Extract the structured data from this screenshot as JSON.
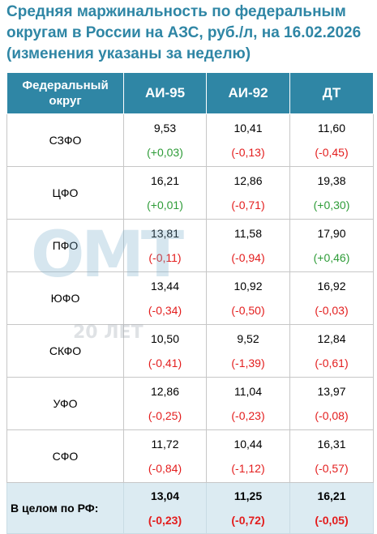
{
  "title_lines": [
    "Средняя маржинальность по федеральным",
    "округам в России на АЗС, руб./л, на 16.02.2026",
    "(изменения указаны за неделю)"
  ],
  "headers": {
    "region_line1": "Федеральный",
    "region_line2": "округ",
    "col1": "АИ-95",
    "col2": "АИ-92",
    "col3": "ДТ"
  },
  "rows": [
    {
      "region": "СЗФО",
      "ai95": "9,53",
      "ai95_chg": "(+0,03)",
      "ai92": "10,41",
      "ai92_chg": "(-0,13)",
      "dt": "11,60",
      "dt_chg": "(-0,45)"
    },
    {
      "region": "ЦФО",
      "ai95": "16,21",
      "ai95_chg": "(+0,01)",
      "ai92": "12,86",
      "ai92_chg": "(-0,71)",
      "dt": "19,38",
      "dt_chg": "(+0,30)"
    },
    {
      "region": "ПФО",
      "ai95": "13,81",
      "ai95_chg": "(-0,11)",
      "ai92": "11,58",
      "ai92_chg": "(-0,94)",
      "dt": "17,90",
      "dt_chg": "(+0,46)"
    },
    {
      "region": "ЮФО",
      "ai95": "13,44",
      "ai95_chg": "(-0,34)",
      "ai92": "10,92",
      "ai92_chg": "(-0,50)",
      "dt": "16,92",
      "dt_chg": "(-0,03)"
    },
    {
      "region": "СКФО",
      "ai95": "10,50",
      "ai95_chg": "(-0,41)",
      "ai92": "9,52",
      "ai92_chg": "(-1,39)",
      "dt": "12,84",
      "dt_chg": "(-0,61)"
    },
    {
      "region": "УФО",
      "ai95": "12,86",
      "ai95_chg": "(-0,25)",
      "ai92": "11,04",
      "ai92_chg": "(-0,23)",
      "dt": "13,97",
      "dt_chg": "(-0,08)"
    },
    {
      "region": "СФО",
      "ai95": "11,72",
      "ai95_chg": "(-0,84)",
      "ai92": "10,44",
      "ai92_chg": "(-1,12)",
      "dt": "16,31",
      "dt_chg": "(-0,57)"
    }
  ],
  "total": {
    "region": "В целом по РФ:",
    "ai95": "13,04",
    "ai95_chg": "(-0,23)",
    "ai92": "11,25",
    "ai92_chg": "(-0,72)",
    "dt": "16,21",
    "dt_chg": "(-0,05)"
  },
  "watermark": {
    "letters": "ОМТ",
    "years": "20 ЛЕТ"
  },
  "colors": {
    "accent": "#2f86a5",
    "positive": "#2e9c38",
    "negative": "#e31d1d",
    "total_bg": "#dcebf2"
  }
}
